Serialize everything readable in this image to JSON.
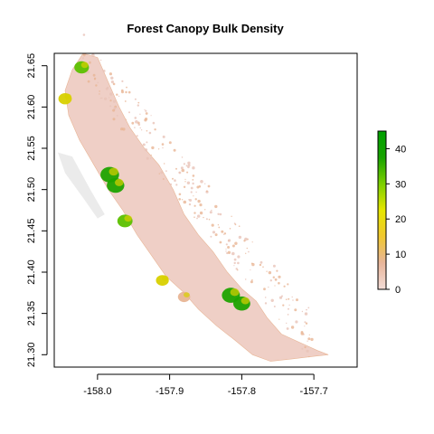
{
  "chart_data": {
    "type": "heatmap",
    "title": "Forest Canopy Bulk Density",
    "xlabel": "",
    "ylabel": "",
    "xlim": [
      -158.06,
      -157.64
    ],
    "ylim": [
      21.285,
      21.665
    ],
    "x_ticks": [
      -158.0,
      -157.9,
      -157.8,
      -157.7
    ],
    "x_tick_labels": [
      "-158.0",
      "-157.9",
      "-157.8",
      "-157.7"
    ],
    "y_ticks": [
      21.3,
      21.35,
      21.4,
      21.45,
      21.5,
      21.55,
      21.6,
      21.65
    ],
    "y_tick_labels": [
      "21.30",
      "21.35",
      "21.40",
      "21.45",
      "21.50",
      "21.55",
      "21.60",
      "21.65"
    ],
    "grid": false,
    "legend": {
      "placement": "right",
      "ticks": [
        0,
        10,
        20,
        30,
        40
      ],
      "tick_labels": [
        "0",
        "10",
        "20",
        "30",
        "40"
      ],
      "range": [
        0,
        45
      ],
      "colors": [
        "#f2dcd7",
        "#e8b59a",
        "#f0c830",
        "#e6e600",
        "#7ccf00",
        "#18a300",
        "#00a000"
      ]
    },
    "colors": {
      "nodata": "#ebebeb",
      "low": "#efcfc6",
      "mid": "#e8b595",
      "high_yellow": "#d8d000",
      "high_green": "#1ea300"
    },
    "dense_patches": [
      {
        "lon": -157.983,
        "lat": 21.518,
        "value": 42
      },
      {
        "lon": -157.975,
        "lat": 21.505,
        "value": 38
      },
      {
        "lon": -157.962,
        "lat": 21.462,
        "value": 30
      },
      {
        "lon": -157.815,
        "lat": 21.372,
        "value": 40
      },
      {
        "lon": -157.8,
        "lat": 21.362,
        "value": 36
      },
      {
        "lon": -158.022,
        "lat": 21.648,
        "value": 28
      },
      {
        "lon": -158.045,
        "lat": 21.61,
        "value": 24
      },
      {
        "lon": -157.91,
        "lat": 21.39,
        "value": 22
      },
      {
        "lon": -157.88,
        "lat": 21.37,
        "value": 20
      }
    ]
  }
}
